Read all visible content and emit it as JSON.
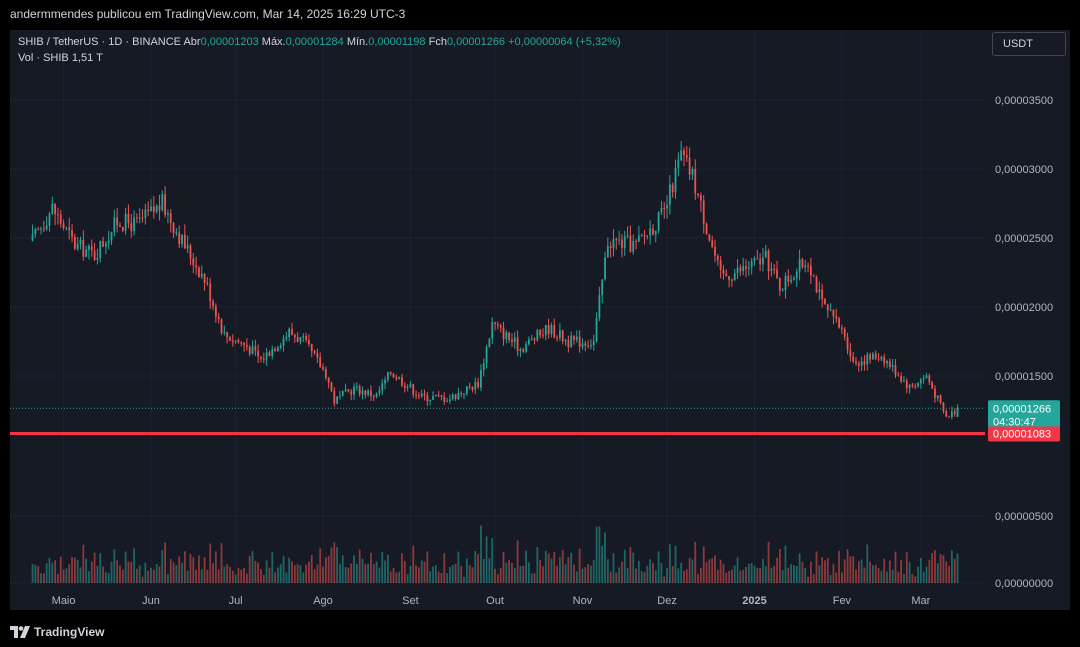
{
  "header": {
    "attribution": "andermmendes publicou em TradingView.com, Mar 14, 2025 16:29 UTC-3"
  },
  "legend": {
    "symbol": "SHIB / TetherUS · 1D · BINANCE",
    "open_label": "Abr",
    "open": "0,00001203",
    "high_label": "Máx.",
    "high": "0,00001284",
    "low_label": "Mín.",
    "low": "0,00001198",
    "close_label": "Fch",
    "close": "0,00001266",
    "change": "+0,00000064 (+5,32%)",
    "vol_label": "Vol · SHIB",
    "vol_value": "1,51 T"
  },
  "currency_button": "USDT",
  "footer": {
    "logo_text": "TradingView"
  },
  "colors": {
    "up": "#26a69a",
    "down": "#ef5350",
    "background": "#161a25",
    "grid": "#1f2330",
    "support": "#f23645"
  },
  "chart_data": {
    "type": "candlestick",
    "y_axis": {
      "ticks": [
        {
          "value": 3.5e-05,
          "label": "0,00003500"
        },
        {
          "value": 3e-05,
          "label": "0,00003000"
        },
        {
          "value": 2.5e-05,
          "label": "0,00002500"
        },
        {
          "value": 2e-05,
          "label": "0,00002000"
        },
        {
          "value": 1.5e-05,
          "label": "0,00001500"
        }
      ],
      "volume_ticks": [
        {
          "value": 500,
          "label": "0,00000500"
        },
        {
          "value": 0,
          "label": "0,00000000"
        }
      ]
    },
    "x_axis": {
      "ticks": [
        {
          "date": "2024-05-01",
          "label": "Maio",
          "bold": false
        },
        {
          "date": "2024-06-01",
          "label": "Jun",
          "bold": false
        },
        {
          "date": "2024-07-01",
          "label": "Jul",
          "bold": false
        },
        {
          "date": "2024-08-01",
          "label": "Ago",
          "bold": false
        },
        {
          "date": "2024-09-01",
          "label": "Set",
          "bold": false
        },
        {
          "date": "2024-10-01",
          "label": "Out",
          "bold": false
        },
        {
          "date": "2024-11-01",
          "label": "Nov",
          "bold": false
        },
        {
          "date": "2024-12-01",
          "label": "Dez",
          "bold": false
        },
        {
          "date": "2025-01-01",
          "label": "2025",
          "bold": true
        },
        {
          "date": "2025-02-01",
          "label": "Fev",
          "bold": false
        },
        {
          "date": "2025-03-01",
          "label": "Mar",
          "bold": false
        }
      ]
    },
    "last_price": {
      "value": 1.266e-05,
      "label": "0,00001266",
      "countdown": "04:30:47"
    },
    "support_line": {
      "value": 1.083e-05,
      "label": "0,00001083"
    },
    "series_anchors": [
      {
        "date": "2024-04-20",
        "close": 2.48e-05
      },
      {
        "date": "2024-04-27",
        "close": 2.72e-05
      },
      {
        "date": "2024-05-05",
        "close": 2.45e-05
      },
      {
        "date": "2024-05-12",
        "close": 2.38e-05
      },
      {
        "date": "2024-05-20",
        "close": 2.62e-05
      },
      {
        "date": "2024-05-27",
        "close": 2.6e-05
      },
      {
        "date": "2024-06-05",
        "close": 2.75e-05
      },
      {
        "date": "2024-06-12",
        "close": 2.48e-05
      },
      {
        "date": "2024-06-20",
        "close": 2.2e-05
      },
      {
        "date": "2024-06-27",
        "close": 1.8e-05
      },
      {
        "date": "2024-07-05",
        "close": 1.72e-05
      },
      {
        "date": "2024-07-10",
        "close": 1.62e-05
      },
      {
        "date": "2024-07-20",
        "close": 1.82e-05
      },
      {
        "date": "2024-07-25",
        "close": 1.75e-05
      },
      {
        "date": "2024-08-02",
        "close": 1.52e-05
      },
      {
        "date": "2024-08-05",
        "close": 1.32e-05
      },
      {
        "date": "2024-08-12",
        "close": 1.41e-05
      },
      {
        "date": "2024-08-20",
        "close": 1.36e-05
      },
      {
        "date": "2024-08-25",
        "close": 1.53e-05
      },
      {
        "date": "2024-09-05",
        "close": 1.35e-05
      },
      {
        "date": "2024-09-15",
        "close": 1.34e-05
      },
      {
        "date": "2024-09-25",
        "close": 1.45e-05
      },
      {
        "date": "2024-09-30",
        "close": 1.88e-05
      },
      {
        "date": "2024-10-10",
        "close": 1.7e-05
      },
      {
        "date": "2024-10-20",
        "close": 1.85e-05
      },
      {
        "date": "2024-10-27",
        "close": 1.75e-05
      },
      {
        "date": "2024-11-05",
        "close": 1.75e-05
      },
      {
        "date": "2024-11-10",
        "close": 2.48e-05
      },
      {
        "date": "2024-11-20",
        "close": 2.45e-05
      },
      {
        "date": "2024-11-30",
        "close": 2.68e-05
      },
      {
        "date": "2024-12-06",
        "close": 3.1e-05
      },
      {
        "date": "2024-12-10",
        "close": 2.95e-05
      },
      {
        "date": "2024-12-20",
        "close": 2.22e-05
      },
      {
        "date": "2024-12-25",
        "close": 2.25e-05
      },
      {
        "date": "2025-01-05",
        "close": 2.35e-05
      },
      {
        "date": "2025-01-10",
        "close": 2.15e-05
      },
      {
        "date": "2025-01-20",
        "close": 2.35e-05
      },
      {
        "date": "2025-01-25",
        "close": 2.02e-05
      },
      {
        "date": "2025-02-02",
        "close": 1.8e-05
      },
      {
        "date": "2025-02-05",
        "close": 1.6e-05
      },
      {
        "date": "2025-02-15",
        "close": 1.65e-05
      },
      {
        "date": "2025-02-25",
        "close": 1.42e-05
      },
      {
        "date": "2025-03-03",
        "close": 1.5e-05
      },
      {
        "date": "2025-03-10",
        "close": 1.2e-05
      },
      {
        "date": "2025-03-14",
        "close": 1.266e-05
      }
    ]
  }
}
